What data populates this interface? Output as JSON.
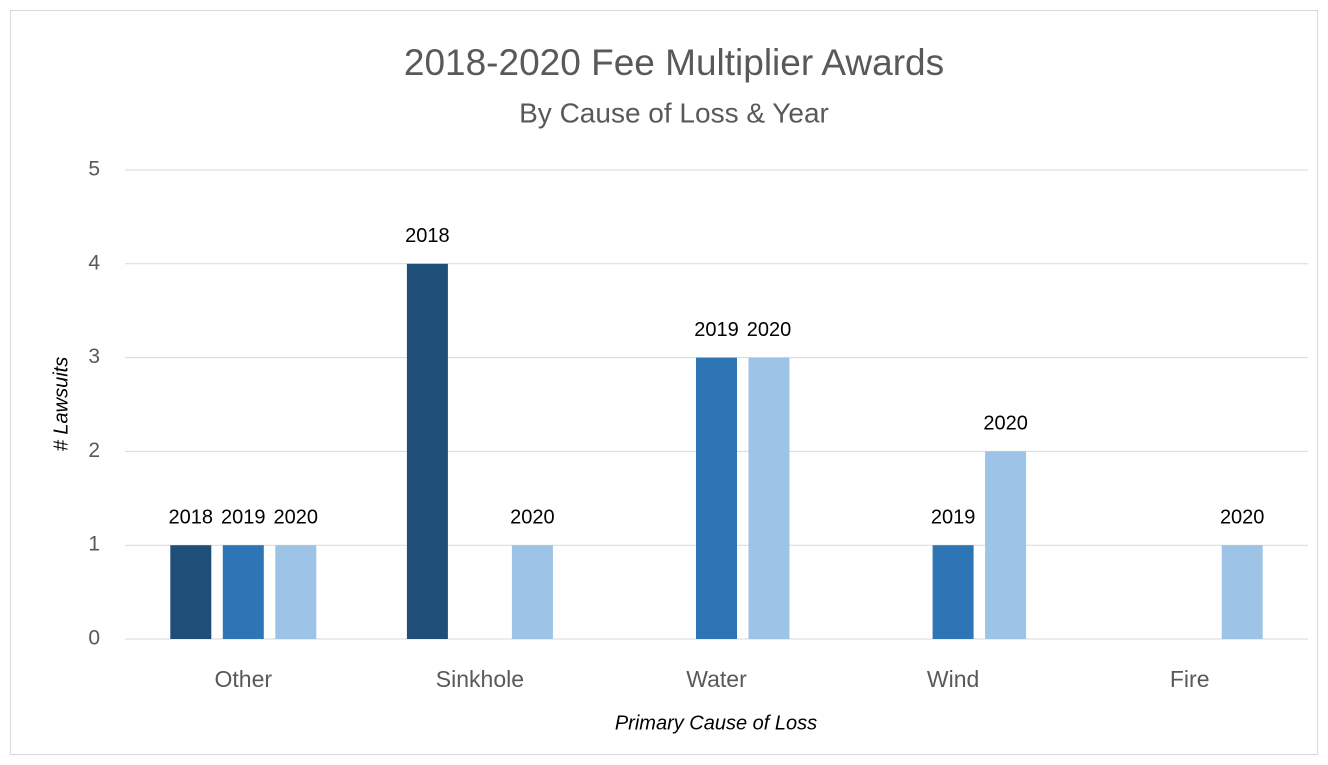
{
  "chart_data": {
    "type": "bar",
    "title": "2018-2020 Fee Multiplier Awards",
    "subtitle": "By Cause of Loss & Year",
    "x_label": "Primary Cause of Loss",
    "y_label": "# Lawsuits",
    "categories": [
      "Other",
      "Sinkhole",
      "Water",
      "Wind",
      "Fire"
    ],
    "series": [
      {
        "name": "2018",
        "color": "#1f4e79",
        "values": [
          1,
          4,
          null,
          null,
          null
        ]
      },
      {
        "name": "2019",
        "color": "#2e75b6",
        "values": [
          1,
          null,
          3,
          1,
          null
        ]
      },
      {
        "name": "2020",
        "color": "#9dc3e6",
        "values": [
          1,
          1,
          3,
          2,
          1
        ]
      }
    ],
    "ylim": [
      0,
      5
    ],
    "yticks": [
      0,
      1,
      2,
      3,
      4,
      5
    ],
    "grid": true
  }
}
